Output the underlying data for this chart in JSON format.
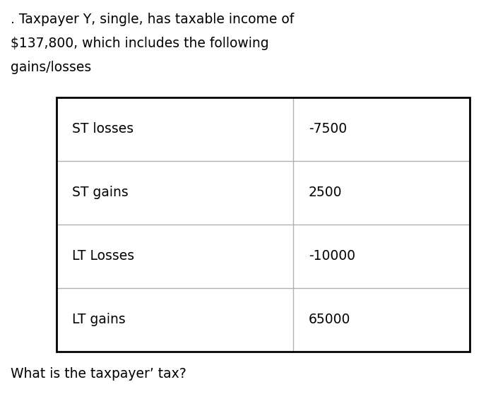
{
  "title_line1": ". Taxpayer Y, single, has taxable income of",
  "title_line2": "$137,800, which includes the following",
  "title_line3": "gains/losses",
  "footer": "What is the taxpayer’ tax?",
  "rows": [
    {
      "label": "ST losses",
      "value": "-7500"
    },
    {
      "label": "ST gains",
      "value": "2500"
    },
    {
      "label": "LT Losses",
      "value": "-10000"
    },
    {
      "label": "LT gains",
      "value": "65000"
    }
  ],
  "background_color": "#ffffff",
  "text_color": "#000000",
  "table_border_color": "#000000",
  "row_divider_color": "#b0b0b0",
  "col_divider_color": "#b0b0b0",
  "title_fontsize": 13.5,
  "cell_fontsize": 13.5,
  "footer_fontsize": 13.5,
  "fig_width": 7.05,
  "fig_height": 5.92,
  "dpi": 100
}
